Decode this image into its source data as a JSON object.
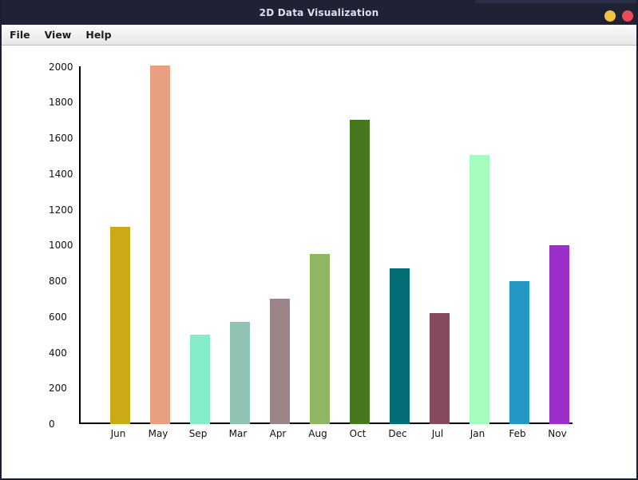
{
  "window": {
    "title": "2D Data Visualization",
    "titlebar_bg": "#1f2234",
    "titlebar_accent": "#2b2e47",
    "border_color": "#1b1e30",
    "controls": [
      {
        "name": "minimize",
        "color": "#f2c342"
      },
      {
        "name": "close",
        "color": "#ee4a57"
      }
    ]
  },
  "menubar": {
    "items": [
      {
        "label": "File"
      },
      {
        "label": "View"
      },
      {
        "label": "Help"
      }
    ]
  },
  "chart_data": {
    "type": "bar",
    "title": "",
    "xlabel": "",
    "ylabel": "",
    "categories": [
      "Jun",
      "May",
      "Sep",
      "Mar",
      "Apr",
      "Aug",
      "Oct",
      "Dec",
      "Jul",
      "Jan",
      "Feb",
      "Nov"
    ],
    "values": [
      1105,
      2005,
      500,
      570,
      700,
      950,
      1705,
      870,
      620,
      1505,
      800,
      1000
    ],
    "colors": [
      "#c8ab16",
      "#e9a081",
      "#86ecca",
      "#8fc4b4",
      "#9c8588",
      "#8fb761",
      "#46781f",
      "#046e78",
      "#854a5c",
      "#a4fcbe",
      "#2398c4",
      "#9c2fc9"
    ],
    "yticks": [
      0,
      200,
      400,
      600,
      800,
      1000,
      1200,
      1400,
      1600,
      1800,
      2000
    ],
    "ylim": [
      0,
      2000
    ],
    "grid": false,
    "legend": "none",
    "background": "#ffffff"
  }
}
